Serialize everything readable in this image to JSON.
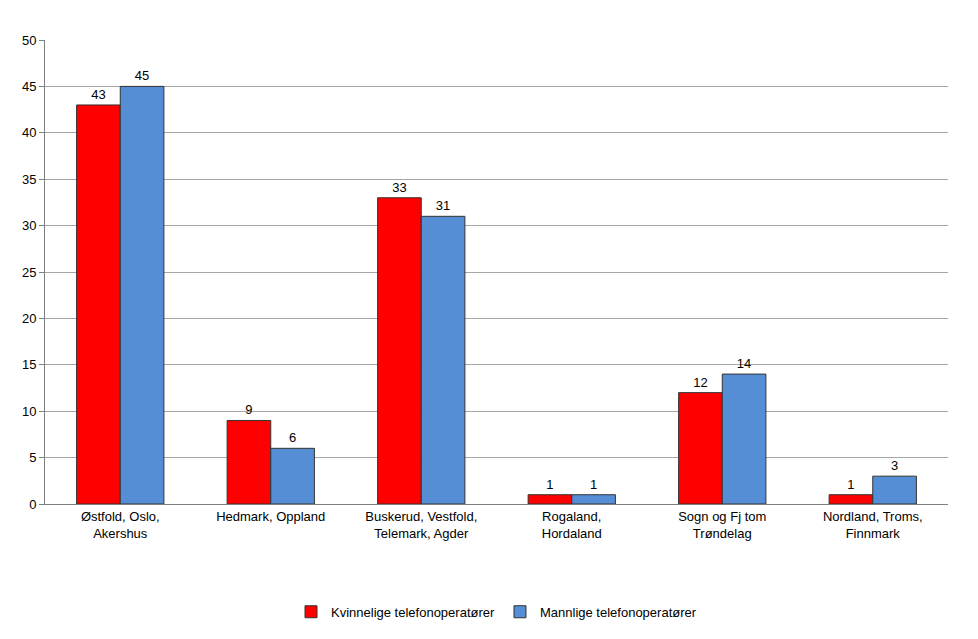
{
  "chart_data": {
    "type": "bar",
    "categories": [
      "Østfold, Oslo, Akershus",
      "Hedmark, Oppland",
      "Buskerud, Vestfold, Telemark, Agder",
      "Rogaland, Hordaland",
      "Sogn og Fj tom Trøndelag",
      "Nordland, Troms, Finnmark"
    ],
    "series": [
      {
        "name": "Kvinnelige telefonoperatører",
        "color": "#ff0000",
        "values": [
          43,
          9,
          33,
          1,
          12,
          1
        ]
      },
      {
        "name": "Mannlige telefonoperatører",
        "color": "#558ed5",
        "values": [
          45,
          6,
          31,
          1,
          14,
          3
        ]
      }
    ],
    "ylim": [
      0,
      50
    ],
    "yticks": [
      0,
      5,
      10,
      15,
      20,
      25,
      30,
      35,
      40,
      45,
      50
    ],
    "grid": true,
    "legend": "bottom",
    "data_labels": true
  }
}
